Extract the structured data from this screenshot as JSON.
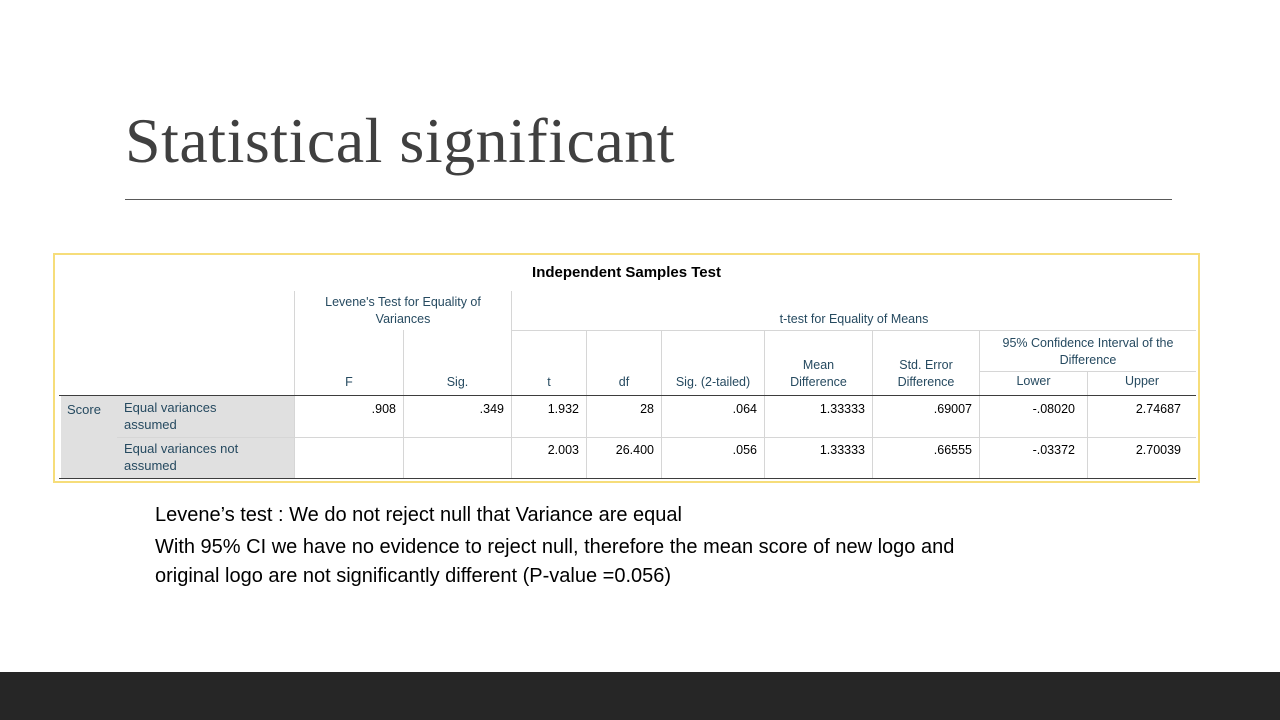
{
  "slide": {
    "title": "Statistical significant",
    "notes": [
      "Levene’s test : We do not reject null that Variance are equal",
      "With 95% CI we have no evidence to reject null, therefore the mean score of new logo and",
      "original logo are not significantly different (P-value =0.056)"
    ]
  },
  "table": {
    "title": "Independent Samples Test",
    "group_headers": {
      "levene": [
        "Levene's Test for Equality of",
        "Variances"
      ],
      "ttest": "t-test for Equality of Means",
      "ci": [
        "95% Confidence Interval of the",
        "Difference"
      ]
    },
    "columns": {
      "f": "F",
      "sig": "Sig.",
      "t": "t",
      "df": "df",
      "sig2": "Sig. (2-tailed)",
      "mean_diff": [
        "Mean",
        "Difference"
      ],
      "se_diff": [
        "Std. Error",
        "Difference"
      ],
      "lower": "Lower",
      "upper": "Upper"
    },
    "row_group": "Score",
    "rows": [
      {
        "label": [
          "Equal variances",
          "assumed"
        ],
        "f": ".908",
        "sig": ".349",
        "t": "1.932",
        "df": "28",
        "sig2": ".064",
        "mean_diff": "1.33333",
        "se_diff": ".69007",
        "lower": "-.08020",
        "upper": "2.74687"
      },
      {
        "label": [
          "Equal variances not",
          "assumed"
        ],
        "f": "",
        "sig": "",
        "t": "2.003",
        "df": "26.400",
        "sig2": ".056",
        "mean_diff": "1.33333",
        "se_diff": ".66555",
        "lower": "-.03372",
        "upper": "2.70039"
      }
    ]
  },
  "colors": {
    "header_text": "#264a60",
    "frame_border": "#f6dd7a",
    "footer": "#262626"
  }
}
